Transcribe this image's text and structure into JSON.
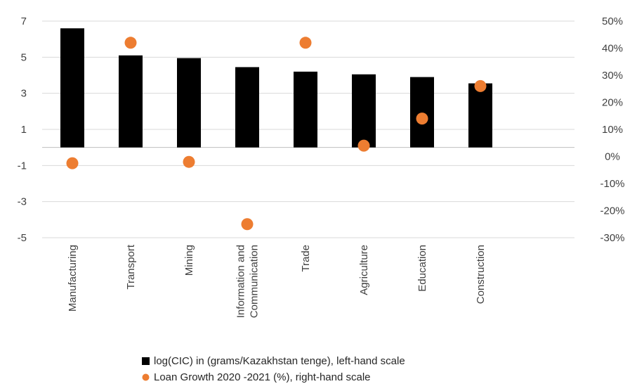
{
  "chart_data": {
    "type": "bar",
    "categories": [
      [
        "Manufacturing"
      ],
      [
        "Transport"
      ],
      [
        "Mining"
      ],
      [
        "Information and",
        "Communication"
      ],
      [
        "Trade"
      ],
      [
        "Agriculture"
      ],
      [
        "Education"
      ],
      [
        "Construction"
      ]
    ],
    "series": [
      {
        "name": "log(CIC) in (grams/Kazakhstan tenge), left-hand scale",
        "kind": "bar",
        "axis": "left",
        "color": "#000000",
        "values": [
          6.6,
          5.1,
          4.95,
          4.45,
          4.2,
          4.05,
          3.9,
          3.55
        ]
      },
      {
        "name": "Loan Growth 2020 -2021 (%), right-hand scale",
        "kind": "scatter",
        "axis": "right",
        "color": "#ED7D31",
        "values": [
          -2.5,
          42,
          -2,
          -25,
          42,
          4,
          14,
          26
        ]
      }
    ],
    "left_axis": {
      "ylim": [
        -5,
        7
      ],
      "ticks": [
        7,
        5,
        3,
        1,
        -1,
        -3,
        -5
      ],
      "tick_labels": [
        "7",
        "5",
        "3",
        "1",
        "-1",
        "-3",
        "-5"
      ]
    },
    "right_axis": {
      "ylim": [
        -30,
        50
      ],
      "ticks": [
        50,
        40,
        30,
        20,
        10,
        0,
        -10,
        -20,
        -30
      ],
      "tick_labels": [
        "50%",
        "40%",
        "30%",
        "20%",
        "10%",
        "0%",
        "-10%",
        "-20%",
        "-30%"
      ]
    },
    "grid": true,
    "gridline_color": "#D9D9D9",
    "legend_position": "bottom"
  }
}
